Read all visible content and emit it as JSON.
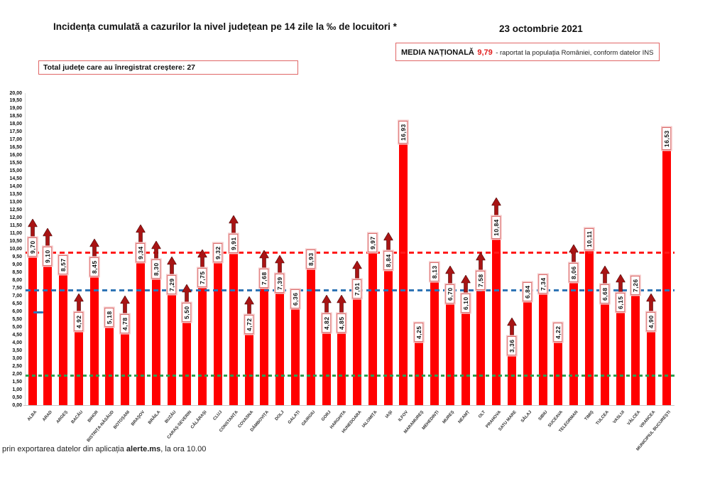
{
  "header": {
    "title": "Incidența cumulată a cazurilor la nivel județean pe 14 zile la ‰ de locuitori *",
    "date": "23 octombrie 2021"
  },
  "growth_box": {
    "label": "Total județe care au înregistrat creștere:",
    "value": "27"
  },
  "average_box": {
    "label": "MEDIA NAȚIONALĂ",
    "value": "9,79",
    "note": "-  raportat la populația României, conform datelor INS"
  },
  "footer": {
    "prefix": "prin exportarea datelor din aplicația ",
    "app": "alerte.ms",
    "suffix": ", la ora 10.00"
  },
  "chart_data": {
    "type": "bar",
    "title": "Incidența cumulată a cazurilor la nivel județean pe 14 zile la ‰ de locuitori",
    "xlabel": "",
    "ylabel": "",
    "ylim": [
      0,
      20
    ],
    "ytick_step": 0.5,
    "grid": false,
    "bar_color": "#ff0000",
    "arrow_color": "#a81414",
    "label_box_border": "#d96a6a",
    "reference_lines": [
      {
        "name": "media-nationala",
        "value": 9.79,
        "color": "#ff1a1a",
        "style": "dashed"
      },
      {
        "name": "reference-blue",
        "value": 7.35,
        "color": "#2e74b5",
        "style": "dashed"
      },
      {
        "name": "reference-green",
        "value": 1.9,
        "color": "#2f9e4f",
        "style": "dashed"
      }
    ],
    "bars": [
      {
        "county": "ALBA",
        "label": "9,70",
        "value": 9.7,
        "increase": true
      },
      {
        "county": "ARAD",
        "label": "9,10",
        "value": 9.1,
        "increase": true
      },
      {
        "county": "ARGEȘ",
        "label": "8,57",
        "value": 8.57,
        "increase": false
      },
      {
        "county": "BACĂU",
        "label": "4,92",
        "value": 4.92,
        "increase": true
      },
      {
        "county": "BIHOR",
        "label": "8,45",
        "value": 8.45,
        "increase": true
      },
      {
        "county": "BISTRIȚA-NĂSĂUD",
        "label": "5,18",
        "value": 5.18,
        "increase": false
      },
      {
        "county": "BOTOȘANI",
        "label": "4,78",
        "value": 4.78,
        "increase": true
      },
      {
        "county": "BRAȘOV",
        "label": "9,34",
        "value": 9.34,
        "increase": true
      },
      {
        "county": "BRĂILA",
        "label": "8,30",
        "value": 8.3,
        "increase": true
      },
      {
        "county": "BUZĂU",
        "label": "7,29",
        "value": 7.29,
        "increase": true
      },
      {
        "county": "CARAȘ-SEVERIN",
        "label": "5,50",
        "value": 5.5,
        "increase": true
      },
      {
        "county": "CĂLĂRAȘI",
        "label": "7,75",
        "value": 7.75,
        "increase": true
      },
      {
        "county": "CLUJ",
        "label": "9,32",
        "value": 9.32,
        "increase": false
      },
      {
        "county": "CONSTANȚA",
        "label": "9,91",
        "value": 9.91,
        "increase": true
      },
      {
        "county": "COVASNA",
        "label": "4,72",
        "value": 4.72,
        "increase": true
      },
      {
        "county": "DÂMBOVIȚA",
        "label": "7,68",
        "value": 7.68,
        "increase": true
      },
      {
        "county": "DOLJ",
        "label": "7,39",
        "value": 7.39,
        "increase": true
      },
      {
        "county": "GALAȚI",
        "label": "6,36",
        "value": 6.36,
        "increase": false
      },
      {
        "county": "GIURGIU",
        "label": "8,93",
        "value": 8.93,
        "increase": false
      },
      {
        "county": "GORJ",
        "label": "4,82",
        "value": 4.82,
        "increase": true
      },
      {
        "county": "HARGHITA",
        "label": "4,85",
        "value": 4.85,
        "increase": true
      },
      {
        "county": "HUNEDOARA",
        "label": "7,01",
        "value": 7.01,
        "increase": true
      },
      {
        "county": "IALOMIȚA",
        "label": "9,97",
        "value": 9.97,
        "increase": false
      },
      {
        "county": "IAȘI",
        "label": "8,84",
        "value": 8.84,
        "increase": true
      },
      {
        "county": "ILFOV",
        "label": "16,93",
        "value": 16.93,
        "increase": false
      },
      {
        "county": "MARAMUREȘ",
        "label": "4,25",
        "value": 4.25,
        "increase": false
      },
      {
        "county": "MEHEDINȚI",
        "label": "8,13",
        "value": 8.13,
        "increase": false
      },
      {
        "county": "MUREȘ",
        "label": "6,70",
        "value": 6.7,
        "increase": true
      },
      {
        "county": "NEAMȚ",
        "label": "6,10",
        "value": 6.1,
        "increase": true
      },
      {
        "county": "OLT",
        "label": "7,58",
        "value": 7.58,
        "increase": true
      },
      {
        "county": "PRAHOVA",
        "label": "10,84",
        "value": 10.84,
        "increase": true
      },
      {
        "county": "SATU MARE",
        "label": "3,36",
        "value": 3.36,
        "increase": true
      },
      {
        "county": "SĂLAJ",
        "label": "6,84",
        "value": 6.84,
        "increase": false
      },
      {
        "county": "SIBIU",
        "label": "7,34",
        "value": 7.34,
        "increase": false
      },
      {
        "county": "SUCEAVA",
        "label": "4,22",
        "value": 4.22,
        "increase": false
      },
      {
        "county": "TELEORMAN",
        "label": "8,06",
        "value": 8.06,
        "increase": true
      },
      {
        "county": "TIMIȘ",
        "label": "10,11",
        "value": 10.11,
        "increase": false
      },
      {
        "county": "TULCEA",
        "label": "6,68",
        "value": 6.68,
        "increase": true
      },
      {
        "county": "VASLUI",
        "label": "6,15",
        "value": 6.15,
        "increase": true
      },
      {
        "county": "VÂLCEA",
        "label": "7,26",
        "value": 7.26,
        "increase": false
      },
      {
        "county": "VRANCEA",
        "label": "4,90",
        "value": 4.9,
        "increase": true
      },
      {
        "county": "MUNICIPIUL BUCUREȘTI",
        "label": "16,53",
        "value": 16.53,
        "increase": false
      }
    ]
  }
}
